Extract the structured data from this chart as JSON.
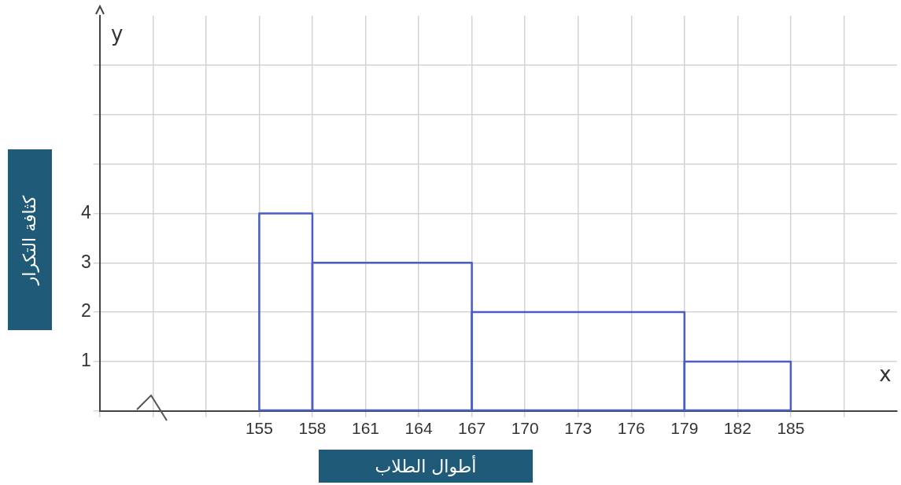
{
  "chart_data": {
    "type": "histogram",
    "xlabel": "أطوال الطلاب",
    "ylabel": "كثافة التكرار",
    "annotations": [
      "x",
      "y"
    ],
    "bins": [
      155,
      158,
      167,
      179,
      185
    ],
    "values": [
      4,
      3,
      2,
      1
    ],
    "color": "#4a5cc8",
    "xlim": [
      146,
      191
    ],
    "xticks": [
      {
        "value": 146,
        "label": null
      },
      {
        "value": 149,
        "label": null
      },
      {
        "value": 152,
        "label": null
      },
      155,
      158,
      161,
      164,
      167,
      170,
      173,
      176,
      179,
      182,
      185,
      {
        "value": 188,
        "label": null
      }
    ],
    "ylim": [
      0,
      8
    ],
    "yticks": [
      {
        "value": 0,
        "label": null
      },
      1,
      2,
      3,
      4,
      {
        "value": 5,
        "label": null
      },
      {
        "value": 6,
        "label": null
      },
      {
        "value": 7,
        "label": null
      }
    ],
    "grid": true,
    "legend": false
  }
}
